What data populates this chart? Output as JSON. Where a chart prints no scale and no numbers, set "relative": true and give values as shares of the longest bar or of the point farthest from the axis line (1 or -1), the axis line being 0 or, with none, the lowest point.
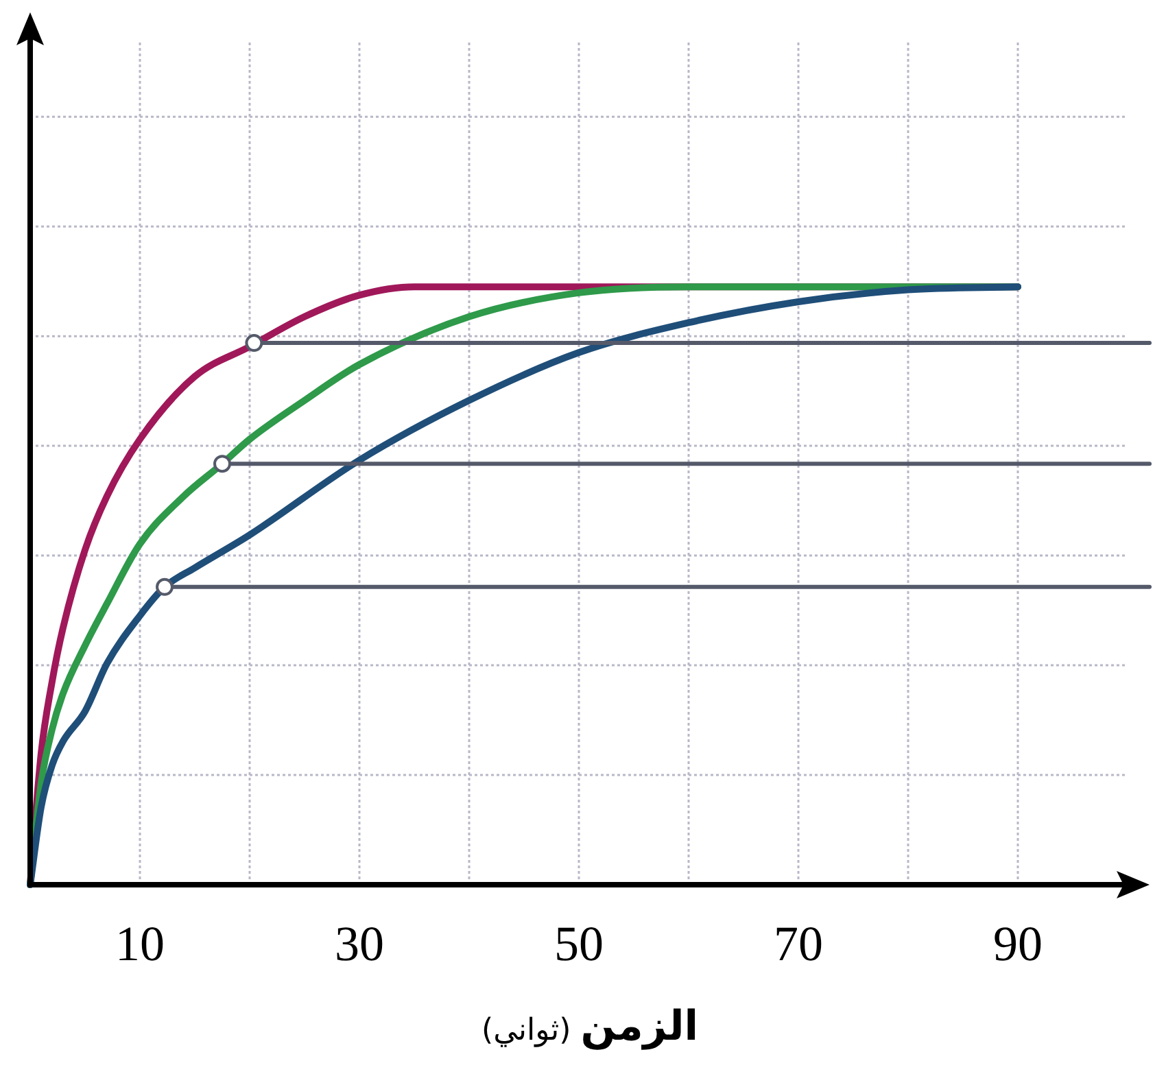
{
  "chart_data": {
    "type": "line",
    "relative": true,
    "xlabel": "**الزمن** (ثواني)",
    "xlim": [
      0,
      102
    ],
    "xticks": [
      10,
      {
        "value": 20,
        "label": null
      },
      30,
      {
        "value": 40,
        "label": null
      },
      50,
      {
        "value": 60,
        "label": null
      },
      70,
      {
        "value": 80,
        "label": null
      },
      90
    ],
    "grid": true,
    "marker": "none",
    "line_style": "solid",
    "series": [
      {
        "color": "#a0185a",
        "x": [
          0,
          1,
          2,
          3,
          5,
          7,
          10,
          15,
          20,
          25,
          30,
          35,
          45,
          60,
          90
        ],
        "values": [
          0,
          0.22,
          0.34,
          0.43,
          0.56,
          0.65,
          0.745,
          0.85,
          0.9,
          0.95,
          0.986,
          1,
          1,
          1,
          1
        ]
      },
      {
        "color": "#2e9a4a",
        "x": [
          0,
          1,
          2,
          3,
          5,
          7,
          10,
          14,
          17.5,
          20,
          25,
          30,
          40,
          50,
          60,
          90
        ],
        "values": [
          0,
          0.17,
          0.26,
          0.32,
          0.4,
          0.47,
          0.57,
          0.65,
          0.704,
          0.745,
          0.81,
          0.87,
          0.95,
          0.99,
          1,
          1
        ]
      },
      {
        "color": "#1f4e79",
        "x": [
          0,
          1,
          2,
          3,
          5,
          7,
          10,
          12.25,
          15,
          20,
          30,
          40,
          50,
          60,
          70,
          80,
          90
        ],
        "values": [
          0,
          0.13,
          0.2,
          0.24,
          0.29,
          0.37,
          0.45,
          0.498,
          0.53,
          0.585,
          0.71,
          0.81,
          0.89,
          0.94,
          0.975,
          0.995,
          1
        ]
      },
      {
        "color": "#555a6a",
        "x": [
          20.4,
          102
        ],
        "values": [
          0.906,
          0.906
        ]
      },
      {
        "color": "#555a6a",
        "x": [
          17.5,
          102
        ],
        "values": [
          0.704,
          0.704
        ]
      },
      {
        "color": "#555a6a",
        "x": [
          12.25,
          102
        ],
        "values": [
          0.498,
          0.498
        ]
      },
      {
        "type": "scatter",
        "marker": "circle",
        "color": "#555a6a",
        "x": [
          20.4,
          17.5,
          12.25
        ],
        "values": [
          0.906,
          0.704,
          0.498
        ]
      }
    ]
  }
}
